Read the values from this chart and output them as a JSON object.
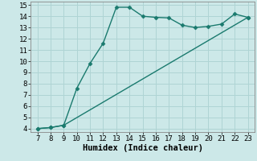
{
  "line1_x": [
    7,
    8,
    9,
    10,
    11,
    12,
    13,
    14,
    15,
    16,
    17,
    18,
    19,
    20,
    21,
    22,
    23
  ],
  "line1_y": [
    4.0,
    4.1,
    4.3,
    7.6,
    9.8,
    11.6,
    14.8,
    14.8,
    14.0,
    13.9,
    13.85,
    13.2,
    13.0,
    13.1,
    13.3,
    14.2,
    13.9
  ],
  "line2_x": [
    7,
    8,
    9,
    23
  ],
  "line2_y": [
    4.0,
    4.1,
    4.3,
    13.9
  ],
  "color": "#1a7a6e",
  "bg_color": "#cce8e8",
  "grid_color": "#afd4d4",
  "xlabel": "Humidex (Indice chaleur)",
  "xlim_min": 6.5,
  "xlim_max": 23.5,
  "ylim_min": 3.7,
  "ylim_max": 15.3,
  "xticks": [
    7,
    8,
    9,
    10,
    11,
    12,
    13,
    14,
    15,
    16,
    17,
    18,
    19,
    20,
    21,
    22,
    23
  ],
  "yticks": [
    4,
    5,
    6,
    7,
    8,
    9,
    10,
    11,
    12,
    13,
    14,
    15
  ],
  "marker": "D",
  "markersize": 2.5,
  "linewidth": 1.0,
  "font_family": "monospace",
  "xlabel_fontsize": 7.5,
  "tick_fontsize": 6.5
}
